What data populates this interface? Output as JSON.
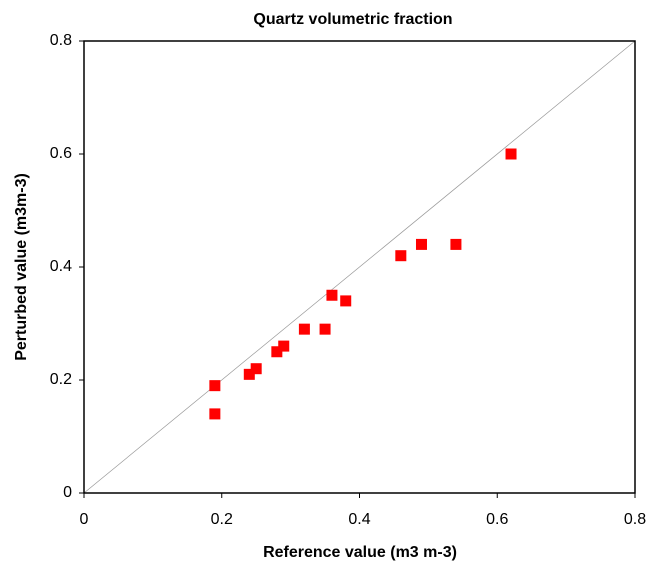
{
  "chart_data": {
    "type": "scatter",
    "title": "Quartz volumetric fraction",
    "x_label": "Reference value (m3 m-3)",
    "y_label": "Perturbed value (m3m-3)",
    "x": [
      0.19,
      0.19,
      0.24,
      0.25,
      0.28,
      0.29,
      0.32,
      0.35,
      0.36,
      0.38,
      0.46,
      0.49,
      0.54,
      0.62
    ],
    "y": [
      0.19,
      0.14,
      0.21,
      0.22,
      0.25,
      0.26,
      0.29,
      0.29,
      0.35,
      0.34,
      0.42,
      0.44,
      0.44,
      0.6
    ],
    "color": "#ff0000",
    "xlim": [
      0,
      0.8
    ],
    "ylim": [
      0,
      0.8
    ],
    "xticks": [
      0,
      0.2,
      0.4,
      0.6,
      0.8
    ],
    "yticks": [
      0,
      0.2,
      0.4,
      0.6,
      0.8
    ],
    "grid": false
  }
}
